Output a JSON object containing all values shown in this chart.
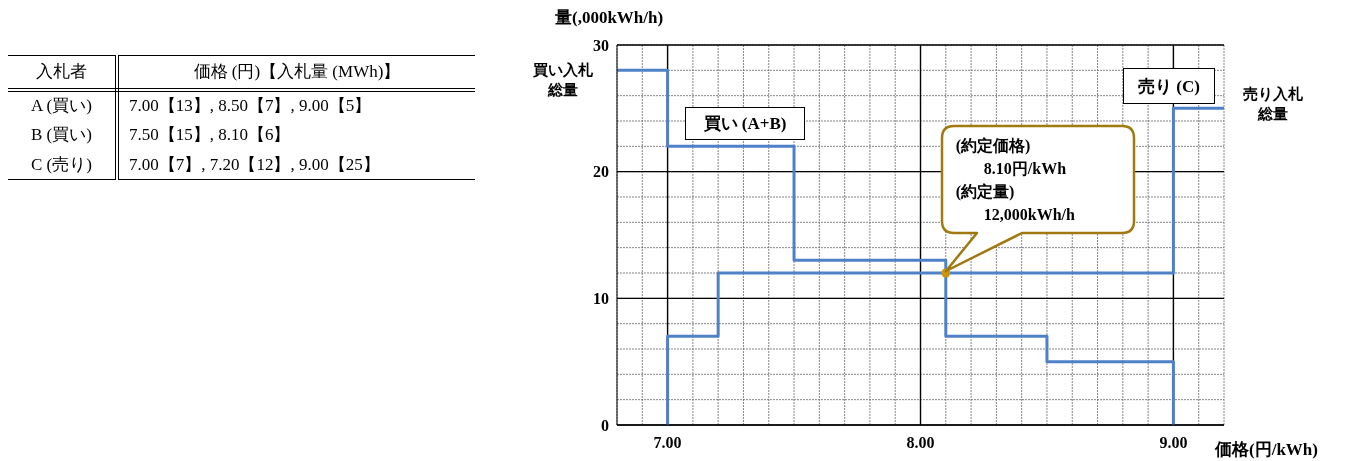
{
  "chart_data": [
    {
      "type": "other",
      "annotations": [
        "入札者",
        "価格 (円)【入札量 (MWh)】",
        "A (買い)",
        "7.00【13】, 8.50【7】, 9.00【5】",
        "B (買い)",
        "7.50【15】, 8.10【6】",
        "C (売り)",
        "7.00【7】, 7.20【12】, 9.00【25】"
      ]
    },
    {
      "type": "step",
      "xlabel": "価格(円/kWh)",
      "ylabel": "量(,000kWh/h)",
      "xlim": [
        6.8,
        9.2
      ],
      "xticks": [
        {
          "value": 7,
          "label": "7.00"
        },
        {
          "value": 8,
          "label": "8.00"
        },
        {
          "value": 9,
          "label": "9.00"
        }
      ],
      "ylim": [
        0,
        30
      ],
      "yticks": [
        0,
        10,
        20,
        30
      ],
      "grid": true,
      "line_style": "solid",
      "series": [
        {
          "name": "買い (A+B)",
          "color": "#4f81c7",
          "x": [
            6.8,
            7.0,
            7.5,
            8.1,
            8.5,
            9.0
          ],
          "values": [
            28,
            22,
            13,
            7,
            5,
            0
          ]
        },
        {
          "name": "売り (C)",
          "color": "#4f81c7",
          "x": [
            7.0,
            7.0,
            7.2,
            9.0,
            9.2
          ],
          "values": [
            0,
            7,
            12,
            25,
            25
          ]
        },
        {
          "type": "scatter",
          "marker": "circle",
          "color": "#c9960c",
          "x": [
            8.1
          ],
          "values": [
            12
          ]
        }
      ],
      "annotations": [
        "買い入札総量",
        "売り入札総量",
        "(約定価格)\n8.10円/kWh\n(約定量)\n12,000kWh/h"
      ]
    }
  ]
}
